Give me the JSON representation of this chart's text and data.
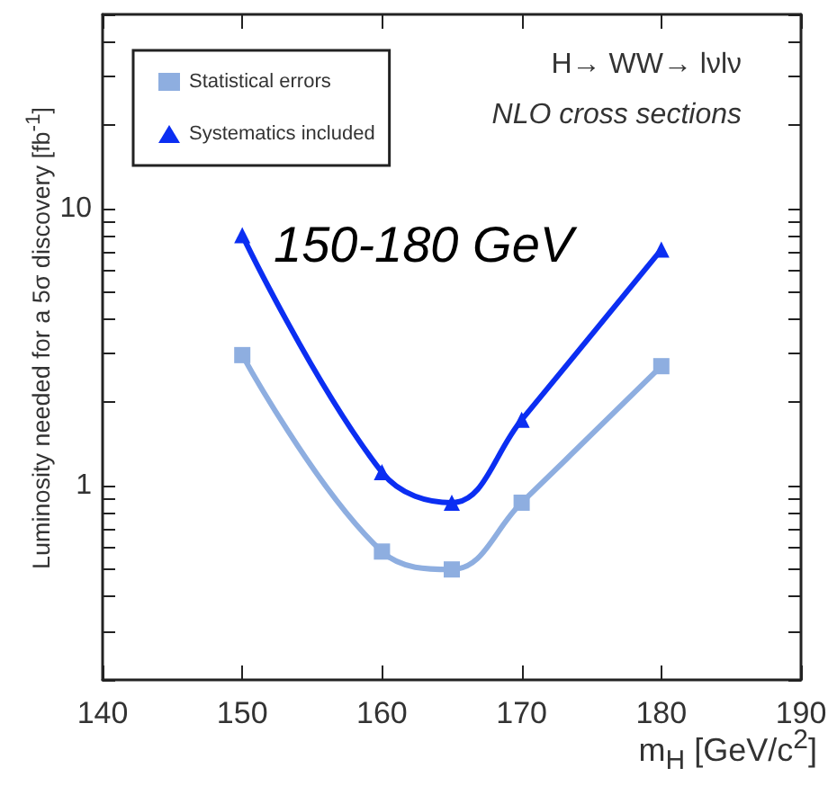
{
  "chart_data": {
    "type": "line",
    "xlabel": "m$_{H}$ [GeV/c$^{2}$]",
    "ylabel": "Luminosity needed for a 5σ discovery [fb$^{-1}$]",
    "annotations": [
      "H→ WW→ lνlν",
      "NLO cross sections",
      "150-180 GeV"
    ],
    "x": [
      150,
      160,
      165,
      170,
      180
    ],
    "series": [
      {
        "name": "Statistical errors",
        "color": "#8eaee0",
        "marker": "square",
        "values": [
          2.96,
          0.58,
          0.5,
          0.87,
          2.7
        ]
      },
      {
        "name": "Systematics included",
        "color": "#0b2ef2",
        "marker": "triangle",
        "values": [
          8.0,
          1.12,
          0.87,
          1.73,
          7.1
        ]
      }
    ],
    "xlim": [
      140,
      190
    ],
    "xticks": [
      140,
      150,
      160,
      170,
      180,
      190
    ],
    "ylim": [
      0.2,
      50
    ],
    "log": true,
    "yticks": [
      {
        "value": 0.2,
        "label": null
      },
      {
        "value": 0.3,
        "label": null
      },
      {
        "value": 0.4,
        "label": null
      },
      {
        "value": 0.5,
        "label": null
      },
      {
        "value": 0.6,
        "label": null
      },
      {
        "value": 0.7,
        "label": null
      },
      {
        "value": 0.8,
        "label": null
      },
      {
        "value": 0.9,
        "label": null
      },
      1,
      {
        "value": 2,
        "label": null
      },
      {
        "value": 3,
        "label": null
      },
      {
        "value": 4,
        "label": null
      },
      {
        "value": 5,
        "label": null
      },
      {
        "value": 6,
        "label": null
      },
      {
        "value": 7,
        "label": null
      },
      {
        "value": 8,
        "label": null
      },
      {
        "value": 9,
        "label": null
      },
      10,
      {
        "value": 20,
        "label": null
      },
      {
        "value": 30,
        "label": null
      },
      {
        "value": 40,
        "label": null
      },
      {
        "value": 50,
        "label": null
      }
    ],
    "grid": false,
    "legend": "top left"
  }
}
